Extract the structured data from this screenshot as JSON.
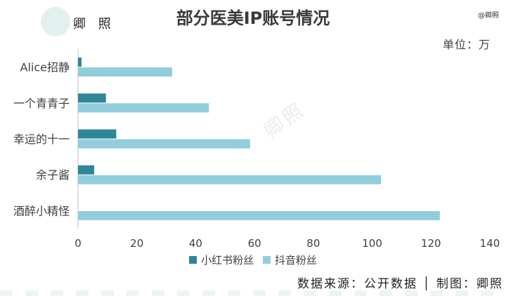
{
  "logo": {
    "text": "卿 照"
  },
  "watermark": {
    "tag": "@卿照",
    "center": "卿照"
  },
  "colors": {
    "series1": "#2f8696",
    "series2": "#92cddc",
    "axis": "#bfbfbf"
  },
  "chart_data": {
    "type": "bar",
    "orientation": "horizontal",
    "title": "部分医美IP账号情况",
    "unit_label": "单位：万",
    "categories": [
      "Alice招静",
      "一个青青子",
      "幸运的十一",
      "余子酱",
      "酒醉小精怪"
    ],
    "series": [
      {
        "name": "小红书粉丝",
        "values": [
          1.2,
          9.5,
          13,
          5.5,
          0
        ]
      },
      {
        "name": "抖音粉丝",
        "values": [
          32,
          44.5,
          58.5,
          103,
          123
        ]
      }
    ],
    "xlim": [
      0,
      140
    ],
    "xticks": [
      0,
      20,
      40,
      60,
      80,
      100,
      120,
      140
    ],
    "grid": false,
    "legend_position": "bottom"
  },
  "footer": {
    "source": "数据来源：公开数据 │ 制图：卿照"
  }
}
